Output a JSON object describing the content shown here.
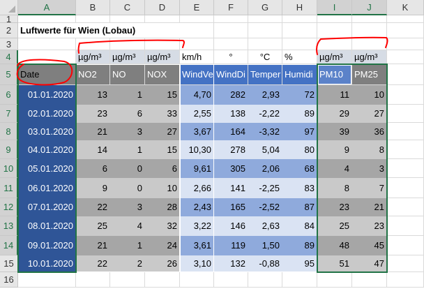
{
  "columns": [
    "A",
    "B",
    "C",
    "D",
    "E",
    "F",
    "G",
    "H",
    "I",
    "J",
    "K"
  ],
  "rows": [
    "1",
    "2",
    "3",
    "4",
    "5",
    "6",
    "7",
    "8",
    "9",
    "10",
    "11",
    "12",
    "13",
    "14",
    "15",
    "16"
  ],
  "title": "Luftwerte für Wien (Lobau)",
  "units": [
    "µg/m³",
    "µg/m³",
    "µg/m³",
    "km/h",
    "°",
    "°C",
    "%",
    "µg/m³",
    "µg/m³"
  ],
  "headers": [
    "Date",
    "NO2",
    "NO",
    "NOX",
    "WindVe",
    "WindDi",
    "Temper",
    "Humidi",
    "PM10",
    "PM25"
  ],
  "data": [
    [
      "01.01.2020",
      "13",
      "1",
      "15",
      "4,70",
      "282",
      "2,93",
      "72",
      "11",
      "10"
    ],
    [
      "02.01.2020",
      "23",
      "6",
      "33",
      "2,55",
      "138",
      "-2,22",
      "89",
      "29",
      "27"
    ],
    [
      "03.01.2020",
      "21",
      "3",
      "27",
      "3,67",
      "164",
      "-3,32",
      "97",
      "39",
      "36"
    ],
    [
      "04.01.2020",
      "14",
      "1",
      "15",
      "10,30",
      "278",
      "5,04",
      "80",
      "9",
      "8"
    ],
    [
      "05.01.2020",
      "6",
      "0",
      "6",
      "9,61",
      "305",
      "2,06",
      "68",
      "4",
      "3"
    ],
    [
      "06.01.2020",
      "9",
      "0",
      "10",
      "2,66",
      "141",
      "-2,25",
      "83",
      "8",
      "7"
    ],
    [
      "07.01.2020",
      "22",
      "3",
      "28",
      "2,43",
      "165",
      "-2,52",
      "87",
      "23",
      "21"
    ],
    [
      "08.01.2020",
      "25",
      "4",
      "32",
      "3,22",
      "146",
      "2,63",
      "84",
      "25",
      "23"
    ],
    [
      "09.01.2020",
      "21",
      "1",
      "24",
      "3,61",
      "119",
      "1,50",
      "89",
      "48",
      "45"
    ],
    [
      "10.01.2020",
      "22",
      "2",
      "26",
      "3,10",
      "132",
      "-0,88",
      "95",
      "51",
      "47"
    ]
  ],
  "colors": {
    "date_col": "#2f5597",
    "grey_dark": "#a6a6a6",
    "grey_light": "#c9c9c9",
    "blue_dark": "#8faadc",
    "blue_light": "#dae3f3",
    "header_grey": "#7f7f7f",
    "header_blue": "#4472c4",
    "unit_row": "#d6dce5",
    "selection": "#217346",
    "annotation": "#ff0000"
  }
}
